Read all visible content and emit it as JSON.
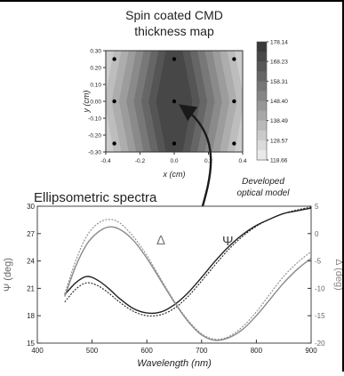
{
  "chart_data": [
    {
      "type": "heatmap",
      "title": "Spin coated CMD thickness map",
      "xlabel": "x (cm)",
      "ylabel": "y (cm)",
      "xlim": [
        -0.4,
        0.4
      ],
      "ylim": [
        -0.3,
        0.3
      ],
      "x_ticks": [
        "-0.4",
        "-0.2",
        "0.0",
        "0.2",
        "0.4"
      ],
      "y_ticks": [
        "0.30",
        "0.20",
        "0.10",
        "0.00",
        "-0.10",
        "-0.20",
        "-0.30"
      ],
      "colorbar": {
        "ticks": [
          "178.14",
          "168.23",
          "158.31",
          "148.40",
          "138.49",
          "128.57",
          "118.66"
        ],
        "min": 118.66,
        "max": 178.14,
        "levels": 12
      },
      "measurement_points": [
        {
          "x": -0.35,
          "y": 0.25
        },
        {
          "x": 0.0,
          "y": 0.25
        },
        {
          "x": 0.35,
          "y": 0.25
        },
        {
          "x": -0.35,
          "y": 0.0
        },
        {
          "x": 0.0,
          "y": 0.0
        },
        {
          "x": 0.35,
          "y": 0.0
        },
        {
          "x": -0.35,
          "y": -0.25
        },
        {
          "x": 0.0,
          "y": -0.25
        },
        {
          "x": 0.35,
          "y": -0.25
        }
      ]
    },
    {
      "type": "line",
      "title": "Ellipsometric spectra",
      "xlabel": "Wavelength (nm)",
      "ylabel": "Ψ (deg)",
      "y2label": "Δ (deg)",
      "xlim": [
        400,
        900
      ],
      "ylim": [
        15,
        30
      ],
      "y2lim": [
        -20,
        5
      ],
      "x_ticks": [
        "400",
        "500",
        "600",
        "700",
        "800",
        "900"
      ],
      "y_ticks": [
        "30",
        "27",
        "24",
        "21",
        "18",
        "15"
      ],
      "y2_ticks": [
        "5",
        "0",
        "-5",
        "-10",
        "-15",
        "-20"
      ],
      "series": [
        {
          "name": "Ψ",
          "axis": "left",
          "color": "#222222",
          "x": [
            450,
            470,
            490,
            510,
            530,
            550,
            575,
            600,
            625,
            650,
            675,
            700,
            725,
            750,
            775,
            800,
            825,
            850,
            875,
            900
          ],
          "measured": [
            20.3,
            21.6,
            22.3,
            21.9,
            21.0,
            19.9,
            18.8,
            18.3,
            18.4,
            19.2,
            20.5,
            22.2,
            24.0,
            25.6,
            26.9,
            27.9,
            28.6,
            29.2,
            29.5,
            29.8
          ],
          "model": [
            19.5,
            20.9,
            21.6,
            21.3,
            20.5,
            19.5,
            18.5,
            18.0,
            18.1,
            18.8,
            20.1,
            21.8,
            23.6,
            25.3,
            26.7,
            27.8,
            28.6,
            29.2,
            29.6,
            29.9
          ]
        },
        {
          "name": "Δ",
          "axis": "right",
          "color": "#8a8a8a",
          "x": [
            450,
            470,
            490,
            510,
            530,
            550,
            575,
            600,
            625,
            650,
            675,
            700,
            725,
            750,
            775,
            800,
            825,
            850,
            875,
            900
          ],
          "measured": [
            -11.5,
            -6.0,
            -2.0,
            0.2,
            1.2,
            0.8,
            -1.2,
            -4.5,
            -8.5,
            -12.5,
            -16.0,
            -18.5,
            -19.5,
            -19.0,
            -17.5,
            -15.0,
            -12.0,
            -9.0,
            -6.5,
            -4.5
          ],
          "model": [
            -11.0,
            -5.0,
            -0.5,
            1.8,
            2.6,
            2.0,
            -0.5,
            -4.0,
            -8.2,
            -12.3,
            -15.8,
            -18.3,
            -19.3,
            -18.8,
            -17.0,
            -14.3,
            -11.0,
            -7.8,
            -5.3,
            -3.3
          ]
        }
      ],
      "series_labels": {
        "psi": "Ψ",
        "delta": "Δ"
      }
    }
  ],
  "annotation": {
    "line1": "Developed",
    "line2": "optical model"
  }
}
